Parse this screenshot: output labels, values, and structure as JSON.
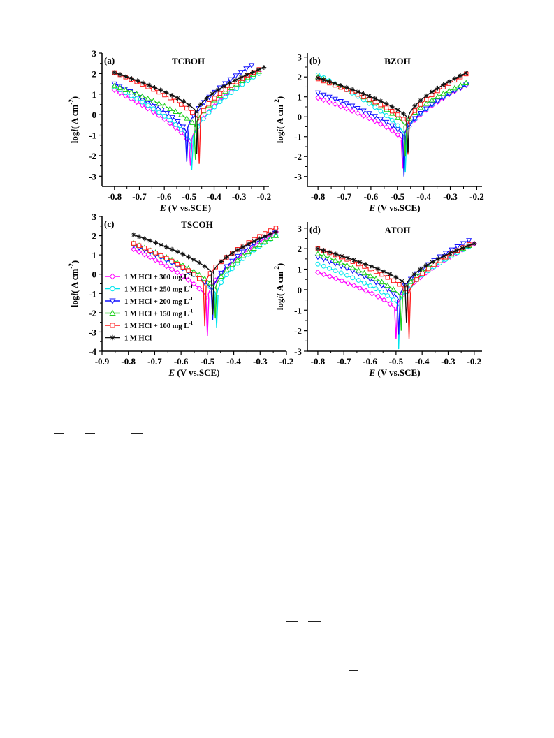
{
  "figure": {
    "legend": {
      "entries": [
        {
          "label": "1 M HCl + 300 mg L",
          "sup": "-1",
          "color": "#ff00ff",
          "marker": "diamond"
        },
        {
          "label": "1 M HCl + 250 mg L",
          "sup": "-1",
          "color": "#00e5ee",
          "marker": "circle"
        },
        {
          "label": "1 M HCl + 200 mg L",
          "sup": "-1",
          "color": "#1010ff",
          "marker": "tri-down"
        },
        {
          "label": "1 M HCl + 150 mg L",
          "sup": "-1",
          "color": "#1fd01f",
          "marker": "tri-up"
        },
        {
          "label": "1 M HCl + 100 mg L",
          "sup": "-1",
          "color": "#ff1a1a",
          "marker": "square"
        },
        {
          "label": "1 M HCl",
          "sup": "",
          "color": "#111111",
          "marker": "star"
        }
      ]
    }
  },
  "chart_data": [
    {
      "type": "line",
      "panel_label": "(a)",
      "title": "TCBOH",
      "xlabel_italic": "E",
      "xlabel_rest": " (V vs.SCE)",
      "ylabel_pre": "log",
      "ylabel_italic": "i",
      "ylabel_post": "(  A cm",
      "ylabel_sup": "-2",
      "ylabel_end": ")",
      "xlim": [
        -0.85,
        -0.18
      ],
      "ylim": [
        -3.5,
        3
      ],
      "xticks": [
        -0.8,
        -0.7,
        -0.6,
        -0.5,
        -0.4,
        -0.3,
        -0.2
      ],
      "yticks": [
        -3,
        -2,
        -1,
        0,
        1,
        2,
        3
      ],
      "series": [
        {
          "name": "1 M HCl + 300 mg L-1",
          "color": "#ff00ff",
          "marker": "diamond",
          "ecorr": -0.495,
          "icorr": -1.5,
          "x_start": -0.8,
          "y_start": 1.2,
          "x_end": -0.22,
          "y_end": 2.1,
          "dip": -2.5
        },
        {
          "name": "1 M HCl + 250 mg L-1",
          "color": "#00e5ee",
          "marker": "circle",
          "ecorr": -0.49,
          "icorr": -1.4,
          "x_start": -0.8,
          "y_start": 1.35,
          "x_end": -0.22,
          "y_end": 2.0,
          "dip": -2.7
        },
        {
          "name": "1 M HCl + 200 mg L-1",
          "color": "#1010ff",
          "marker": "tri-down",
          "ecorr": -0.51,
          "icorr": -0.9,
          "x_start": -0.8,
          "y_start": 1.5,
          "x_end": -0.25,
          "y_end": 2.4,
          "dip": -2.3
        },
        {
          "name": "1 M HCl + 150 mg L-1",
          "color": "#1fd01f",
          "marker": "tri-up",
          "ecorr": -0.475,
          "icorr": -0.6,
          "x_start": -0.8,
          "y_start": 1.4,
          "x_end": -0.22,
          "y_end": 2.1,
          "dip": -2.2
        },
        {
          "name": "1 M HCl + 100 mg L-1",
          "color": "#ff1a1a",
          "marker": "square",
          "ecorr": -0.46,
          "icorr": -0.3,
          "x_start": -0.8,
          "y_start": 2.05,
          "x_end": -0.22,
          "y_end": 2.2,
          "dip": -2.4
        },
        {
          "name": "1 M HCl",
          "color": "#111111",
          "marker": "star",
          "ecorr": -0.47,
          "icorr": 0.1,
          "x_start": -0.8,
          "y_start": 2.05,
          "x_end": -0.2,
          "y_end": 2.3,
          "dip": -1.9
        }
      ]
    },
    {
      "type": "line",
      "panel_label": "(b)",
      "title": "BZOH",
      "xlabel_italic": "E",
      "xlabel_rest": " (V vs.SCE)",
      "ylabel_pre": "log",
      "ylabel_italic": "i",
      "ylabel_post": "(  A cm",
      "ylabel_sup": "-2",
      "ylabel_end": ")",
      "xlim": [
        -0.84,
        -0.18
      ],
      "ylim": [
        -3.5,
        3.2
      ],
      "xticks": [
        -0.8,
        -0.7,
        -0.6,
        -0.5,
        -0.4,
        -0.3,
        -0.2
      ],
      "yticks": [
        -3,
        -2,
        -1,
        0,
        1,
        2,
        3
      ],
      "series": [
        {
          "name": "1 M HCl + 300 mg L-1",
          "color": "#ff00ff",
          "marker": "diamond",
          "ecorr": -0.48,
          "icorr": -1.2,
          "x_start": -0.8,
          "y_start": 0.95,
          "x_end": -0.24,
          "y_end": 1.6,
          "dip": -2.6
        },
        {
          "name": "1 M HCl + 250 mg L-1",
          "color": "#00e5ee",
          "marker": "circle",
          "ecorr": -0.47,
          "icorr": -1.0,
          "x_start": -0.8,
          "y_start": 2.1,
          "x_end": -0.24,
          "y_end": 1.65,
          "dip": -2.8
        },
        {
          "name": "1 M HCl + 200 mg L-1",
          "color": "#1010ff",
          "marker": "tri-down",
          "ecorr": -0.475,
          "icorr": -1.0,
          "x_start": -0.8,
          "y_start": 1.2,
          "x_end": -0.24,
          "y_end": 1.6,
          "dip": -3.0
        },
        {
          "name": "1 M HCl + 150 mg L-1",
          "color": "#1fd01f",
          "marker": "tri-up",
          "ecorr": -0.47,
          "icorr": -0.5,
          "x_start": -0.8,
          "y_start": 2.0,
          "x_end": -0.24,
          "y_end": 1.7,
          "dip": -2.0
        },
        {
          "name": "1 M HCl + 100 mg L-1",
          "color": "#ff1a1a",
          "marker": "square",
          "ecorr": -0.46,
          "icorr": -0.4,
          "x_start": -0.8,
          "y_start": 1.9,
          "x_end": -0.24,
          "y_end": 2.15,
          "dip": -1.9
        },
        {
          "name": "1 M HCl",
          "color": "#111111",
          "marker": "star",
          "ecorr": -0.46,
          "icorr": -0.1,
          "x_start": -0.8,
          "y_start": 1.95,
          "x_end": -0.24,
          "y_end": 2.2,
          "dip": -1.8
        }
      ]
    },
    {
      "type": "line",
      "panel_label": "(c)",
      "title": "TSCOH",
      "xlabel_italic": "E",
      "xlabel_rest": " (V vs.SCE)",
      "ylabel_pre": "log",
      "ylabel_italic": "i",
      "ylabel_post": "(  A cm",
      "ylabel_sup": "-2",
      "ylabel_end": ")",
      "xlim": [
        -0.9,
        -0.2
      ],
      "ylim": [
        -4,
        3
      ],
      "xticks": [
        -0.9,
        -0.8,
        -0.7,
        -0.6,
        -0.5,
        -0.4,
        -0.3,
        -0.2
      ],
      "yticks": [
        -4,
        -3,
        -2,
        -1,
        0,
        1,
        2,
        3
      ],
      "series": [
        {
          "name": "1 M HCl + 300 mg L-1",
          "color": "#ff00ff",
          "marker": "diamond",
          "ecorr": -0.5,
          "icorr": -1.3,
          "x_start": -0.78,
          "y_start": 1.3,
          "x_end": -0.24,
          "y_end": 2.2,
          "dip": -3.2
        },
        {
          "name": "1 M HCl + 250 mg L-1",
          "color": "#00e5ee",
          "marker": "circle",
          "ecorr": -0.465,
          "icorr": -1.1,
          "x_start": -0.78,
          "y_start": 1.55,
          "x_end": -0.24,
          "y_end": 2.0,
          "dip": -2.8
        },
        {
          "name": "1 M HCl + 200 mg L-1",
          "color": "#1010ff",
          "marker": "tri-down",
          "ecorr": -0.48,
          "icorr": -0.9,
          "x_start": -0.78,
          "y_start": 1.5,
          "x_end": -0.24,
          "y_end": 2.3,
          "dip": -2.4
        },
        {
          "name": "1 M HCl + 150 mg L-1",
          "color": "#1fd01f",
          "marker": "tri-up",
          "ecorr": -0.47,
          "icorr": -0.8,
          "x_start": -0.78,
          "y_start": 1.6,
          "x_end": -0.24,
          "y_end": 2.0,
          "dip": -2.3
        },
        {
          "name": "1 M HCl + 100 mg L-1",
          "color": "#ff1a1a",
          "marker": "square",
          "ecorr": -0.51,
          "icorr": -0.6,
          "x_start": -0.78,
          "y_start": 1.6,
          "x_end": -0.24,
          "y_end": 2.4,
          "dip": -2.7
        },
        {
          "name": "1 M HCl",
          "color": "#111111",
          "marker": "star",
          "ecorr": -0.48,
          "icorr": 0.0,
          "x_start": -0.78,
          "y_start": 2.05,
          "x_end": -0.24,
          "y_end": 2.2,
          "dip": -2.1
        }
      ]
    },
    {
      "type": "line",
      "panel_label": "(d)",
      "title": "ATOH",
      "xlabel_italic": "E",
      "xlabel_rest": " (V vs.SCE)",
      "ylabel_pre": "log",
      "ylabel_italic": "i",
      "ylabel_post": "(  A cm",
      "ylabel_sup": "-2",
      "ylabel_end": ")",
      "xlim": [
        -0.84,
        -0.17
      ],
      "ylim": [
        -3,
        3.3
      ],
      "xticks": [
        -0.8,
        -0.7,
        -0.6,
        -0.5,
        -0.4,
        -0.3,
        -0.2
      ],
      "yticks": [
        -3,
        -2,
        -1,
        0,
        1,
        2,
        3
      ],
      "series": [
        {
          "name": "1 M HCl + 300 mg L-1",
          "color": "#ff00ff",
          "marker": "diamond",
          "ecorr": -0.5,
          "icorr": -1.0,
          "x_start": -0.8,
          "y_start": 0.85,
          "x_end": -0.2,
          "y_end": 2.25,
          "dip": -2.4
        },
        {
          "name": "1 M HCl + 250 mg L-1",
          "color": "#00e5ee",
          "marker": "circle",
          "ecorr": -0.49,
          "icorr": -0.8,
          "x_start": -0.8,
          "y_start": 1.25,
          "x_end": -0.22,
          "y_end": 2.1,
          "dip": -2.9
        },
        {
          "name": "1 M HCl + 200 mg L-1",
          "color": "#1010ff",
          "marker": "tri-down",
          "ecorr": -0.49,
          "icorr": -0.5,
          "x_start": -0.8,
          "y_start": 1.6,
          "x_end": -0.22,
          "y_end": 2.4,
          "dip": -2.2
        },
        {
          "name": "1 M HCl + 150 mg L-1",
          "color": "#1fd01f",
          "marker": "tri-up",
          "ecorr": -0.48,
          "icorr": -0.4,
          "x_start": -0.8,
          "y_start": 1.75,
          "x_end": -0.22,
          "y_end": 2.15,
          "dip": -2.0
        },
        {
          "name": "1 M HCl + 100 mg L-1",
          "color": "#ff1a1a",
          "marker": "square",
          "ecorr": -0.45,
          "icorr": -0.2,
          "x_start": -0.8,
          "y_start": 2.0,
          "x_end": -0.22,
          "y_end": 2.2,
          "dip": -2.4
        },
        {
          "name": "1 M HCl",
          "color": "#111111",
          "marker": "star",
          "ecorr": -0.46,
          "icorr": 0.2,
          "x_start": -0.8,
          "y_start": 2.0,
          "x_end": -0.2,
          "y_end": 2.25,
          "dip": -1.6
        }
      ]
    }
  ]
}
